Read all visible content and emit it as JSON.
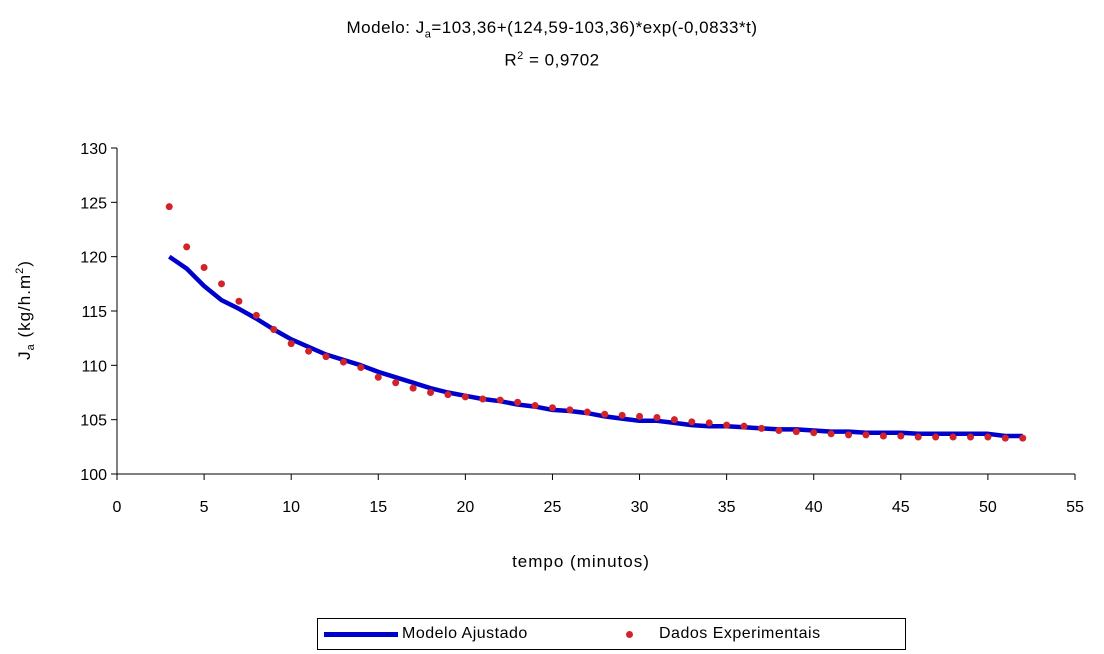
{
  "title": {
    "prefix": "Modelo: J",
    "sub": "a",
    "formula": "=103,36+(124,59-103,36)*exp(-0,0833*t)",
    "r2_prefix": "R",
    "r2_sup": "2",
    "r2_value": " = 0,9702"
  },
  "chart_data": {
    "type": "line",
    "xlabel": "tempo (minutos)",
    "ylabel": "Ja (kg/h.m²)",
    "ylabel_parts": {
      "main": "J",
      "sub": "a",
      "unit": " (kg/h.m",
      "sup": "2",
      "close": ")"
    },
    "xlim": [
      0,
      55
    ],
    "ylim": [
      100,
      130
    ],
    "xticks": [
      0,
      5,
      10,
      15,
      20,
      25,
      30,
      35,
      40,
      45,
      50,
      55
    ],
    "yticks": [
      100,
      105,
      110,
      115,
      120,
      125,
      130
    ],
    "grid": false,
    "legend_position": "bottom",
    "series": [
      {
        "name": "Modelo Ajustado",
        "kind": "line",
        "color": "#0000cc",
        "x": [
          3,
          4,
          5,
          6,
          7,
          8,
          9,
          10,
          11,
          12,
          13,
          14,
          15,
          16,
          17,
          18,
          19,
          20,
          21,
          22,
          23,
          24,
          25,
          26,
          27,
          28,
          29,
          30,
          31,
          32,
          33,
          34,
          35,
          36,
          37,
          38,
          39,
          40,
          41,
          42,
          43,
          44,
          45,
          46,
          47,
          48,
          49,
          50,
          51,
          52
        ],
        "y": [
          120.0,
          118.9,
          117.3,
          116.0,
          115.2,
          114.3,
          113.3,
          112.4,
          111.7,
          111.0,
          110.5,
          110.0,
          109.4,
          108.9,
          108.4,
          107.9,
          107.5,
          107.2,
          106.9,
          106.7,
          106.4,
          106.2,
          105.9,
          105.8,
          105.6,
          105.3,
          105.1,
          104.9,
          104.9,
          104.7,
          104.5,
          104.4,
          104.4,
          104.3,
          104.2,
          104.1,
          104.1,
          104.0,
          103.9,
          103.9,
          103.8,
          103.8,
          103.8,
          103.7,
          103.7,
          103.7,
          103.7,
          103.7,
          103.5,
          103.5
        ]
      },
      {
        "name": "Dados Experimentais",
        "kind": "scatter",
        "color": "#d2232a",
        "x": [
          3,
          4,
          5,
          6,
          7,
          8,
          9,
          10,
          11,
          12,
          13,
          14,
          15,
          16,
          17,
          18,
          19,
          20,
          21,
          22,
          23,
          24,
          25,
          26,
          27,
          28,
          29,
          30,
          31,
          32,
          33,
          34,
          35,
          36,
          37,
          38,
          39,
          40,
          41,
          42,
          43,
          44,
          45,
          46,
          47,
          48,
          49,
          50,
          51,
          52
        ],
        "y": [
          124.6,
          120.9,
          119.0,
          117.5,
          115.9,
          114.6,
          113.3,
          112.0,
          111.3,
          110.8,
          110.3,
          109.8,
          108.9,
          108.4,
          107.9,
          107.5,
          107.3,
          107.1,
          106.9,
          106.8,
          106.6,
          106.3,
          106.1,
          105.9,
          105.7,
          105.5,
          105.4,
          105.3,
          105.2,
          105.0,
          104.8,
          104.7,
          104.5,
          104.4,
          104.2,
          104.0,
          103.9,
          103.8,
          103.7,
          103.6,
          103.6,
          103.5,
          103.5,
          103.4,
          103.4,
          103.4,
          103.4,
          103.4,
          103.3,
          103.3
        ]
      }
    ]
  }
}
